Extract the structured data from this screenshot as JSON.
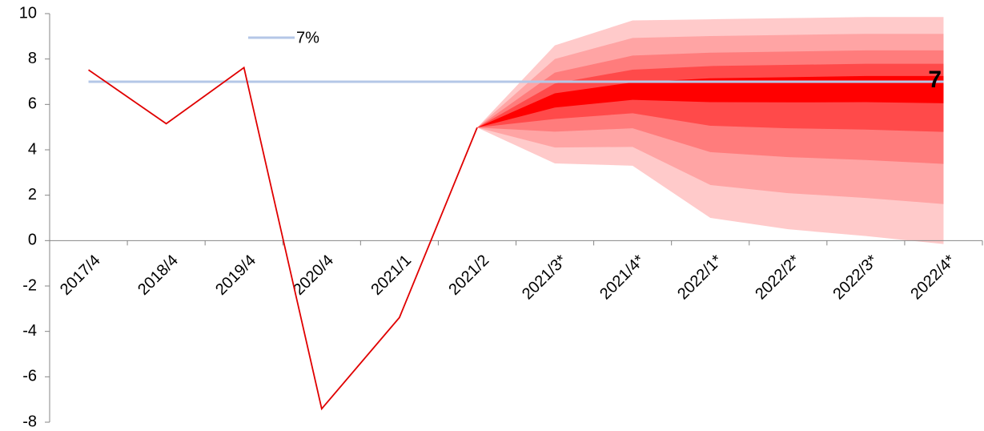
{
  "chart_data": {
    "type": "fan",
    "categories": [
      "2017/4",
      "2018/4",
      "2019/4",
      "2020/4",
      "2021/1",
      "2021/2",
      "2021/3*",
      "2021/4*",
      "2022/1*",
      "2022/2*",
      "2022/3*",
      "2022/4*"
    ],
    "series": [
      {
        "name": "7%",
        "color": "#b4c7e7",
        "values": [
          7,
          7,
          7,
          7,
          7,
          7,
          7,
          7,
          7,
          7,
          7,
          7
        ],
        "legend": true
      },
      {
        "color": "#e00000",
        "values": [
          7.52,
          5.15,
          7.62,
          -7.41,
          -3.39,
          4.98,
          null,
          null,
          null,
          null,
          null,
          null
        ]
      }
    ],
    "fan": [
      {
        "color": "#ffcaca",
        "upper": [
          null,
          null,
          null,
          null,
          null,
          4.98,
          8.6,
          9.7,
          9.75,
          9.8,
          9.85,
          9.85
        ],
        "lower": [
          null,
          null,
          null,
          null,
          null,
          4.98,
          3.4,
          3.3,
          1.0,
          0.5,
          0.2,
          -0.15
        ]
      },
      {
        "color": "#ffa4a4",
        "upper": [
          null,
          null,
          null,
          null,
          null,
          4.98,
          8.0,
          8.93,
          9.01,
          9.06,
          9.11,
          9.11
        ],
        "lower": [
          null,
          null,
          null,
          null,
          null,
          4.98,
          4.1,
          4.13,
          2.45,
          2.09,
          1.88,
          1.61
        ]
      },
      {
        "color": "#ff7c7c",
        "upper": [
          null,
          null,
          null,
          null,
          null,
          4.98,
          7.4,
          8.15,
          8.28,
          8.33,
          8.38,
          8.38
        ],
        "lower": [
          null,
          null,
          null,
          null,
          null,
          4.98,
          4.8,
          4.95,
          3.9,
          3.68,
          3.55,
          3.38
        ]
      },
      {
        "color": "#ff4a4a",
        "upper": [
          null,
          null,
          null,
          null,
          null,
          4.98,
          6.92,
          7.53,
          7.69,
          7.74,
          7.79,
          7.79
        ],
        "lower": [
          null,
          null,
          null,
          null,
          null,
          4.98,
          5.36,
          5.61,
          5.06,
          4.95,
          4.89,
          4.79
        ]
      },
      {
        "color": "#ff0000",
        "upper": [
          null,
          null,
          null,
          null,
          null,
          4.98,
          6.49,
          6.97,
          7.15,
          7.2,
          7.25,
          7.25
        ],
        "lower": [
          null,
          null,
          null,
          null,
          null,
          4.98,
          5.86,
          6.2,
          6.1,
          6.09,
          6.1,
          6.05
        ]
      }
    ],
    "annotation": "7",
    "ylim": [
      -8,
      10
    ],
    "yticks": [
      -8,
      -6,
      -4,
      -2,
      0,
      2,
      4,
      6,
      8,
      10
    ]
  }
}
